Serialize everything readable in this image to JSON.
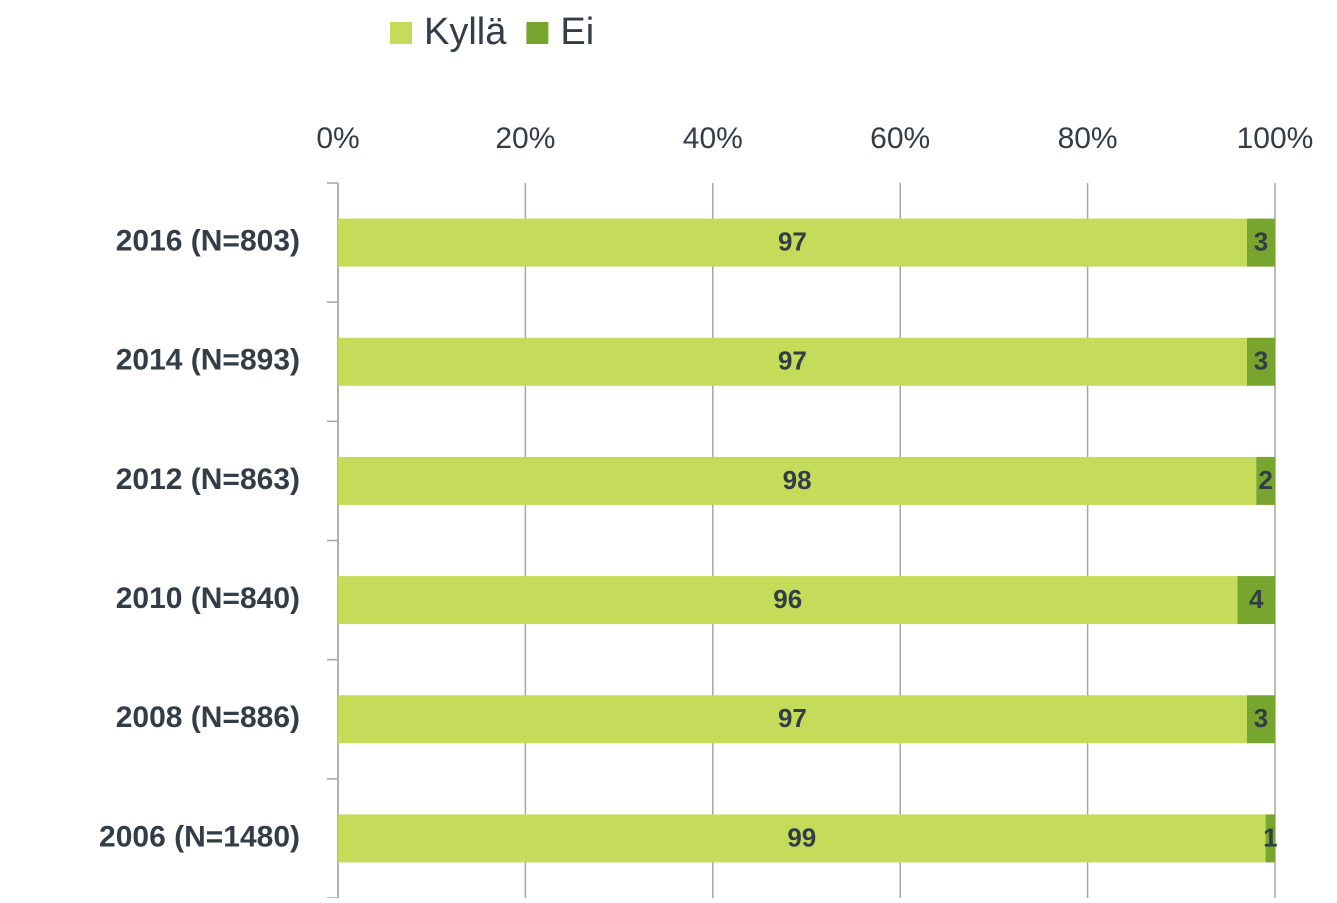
{
  "chart_data": {
    "type": "stacked_barh",
    "categories": [
      "2016 (N=803)",
      "2014 (N=893)",
      "2012 (N=863)",
      "2010 (N=840)",
      "2008 (N=886)",
      "2006 (N=1480)"
    ],
    "series": [
      {
        "name": "Kyllä",
        "color": "#c5dc5a",
        "values": [
          97,
          97,
          98,
          96,
          97,
          99
        ]
      },
      {
        "name": "Ei",
        "color": "#77a52e",
        "values": [
          3,
          3,
          2,
          4,
          3,
          1
        ]
      }
    ],
    "xlim": [
      0,
      100
    ],
    "xticks": [
      {
        "value": 0,
        "label": "0%"
      },
      {
        "value": 20,
        "label": "20%"
      },
      {
        "value": 40,
        "label": "40%"
      },
      {
        "value": 60,
        "label": "60%"
      },
      {
        "value": 80,
        "label": "80%"
      },
      {
        "value": 100,
        "label": "100%"
      }
    ],
    "grid": true,
    "legend": "top"
  }
}
